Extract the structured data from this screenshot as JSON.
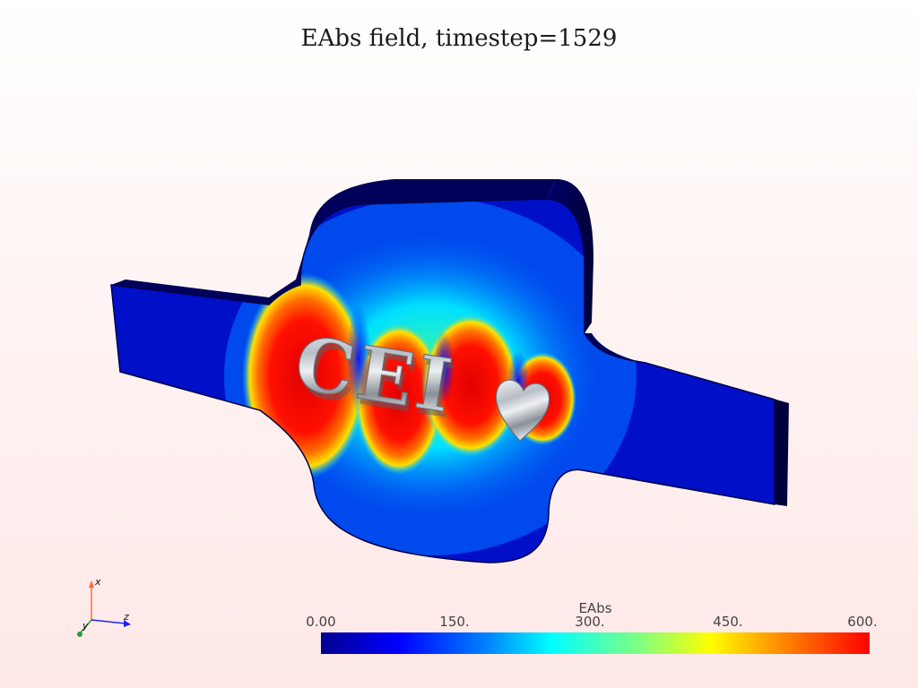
{
  "title": "EAbs field, timestep=1529",
  "model_text": "CEI",
  "axes": {
    "x_label": "x",
    "y_label": "y",
    "z_label": "z"
  },
  "colorbar": {
    "title": "EAbs",
    "tick_labels": [
      "0.00",
      "150.",
      "300.",
      "450.",
      "600."
    ],
    "range": [
      0,
      600
    ],
    "colormap": "rainbow (blue-cyan-green-yellow-red)"
  },
  "colors": {
    "low": "#00008f",
    "mid": "#00ffff",
    "high": "#ff0000"
  }
}
